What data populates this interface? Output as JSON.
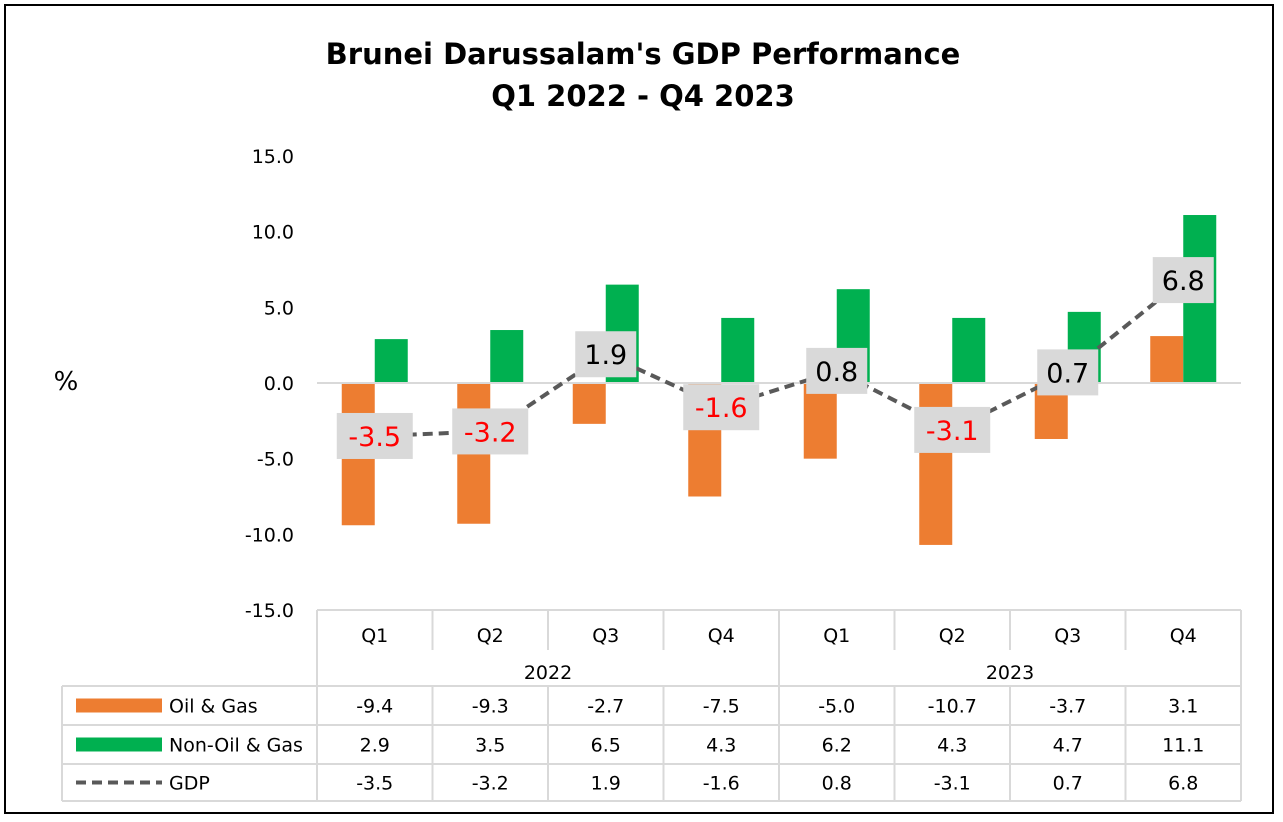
{
  "chart_data": {
    "type": "bar",
    "title": "Brunei Darussalam's GDP Performance",
    "subtitle": "Q1 2022 - Q4 2023",
    "ylabel": "%",
    "ylim": [
      -15,
      15
    ],
    "yticks": [
      "15.0",
      "10.0",
      "5.0",
      "0.0",
      "-5.0",
      "-10.0",
      "-15.0"
    ],
    "grid": false,
    "legend": "data-table",
    "categories": [
      "Q1",
      "Q2",
      "Q3",
      "Q4",
      "Q1",
      "Q2",
      "Q3",
      "Q4"
    ],
    "groups": [
      {
        "label": "2022",
        "span": 4
      },
      {
        "label": "2023",
        "span": 4
      }
    ],
    "series": [
      {
        "name": "Oil & Gas",
        "type": "bar",
        "color": "#ED7D31",
        "values": [
          -9.4,
          -9.3,
          -2.7,
          -7.5,
          -5.0,
          -10.7,
          -3.7,
          3.1
        ],
        "display": [
          "-9.4",
          "-9.3",
          "-2.7",
          "-7.5",
          "-5.0",
          "-10.7",
          "-3.7",
          "3.1"
        ]
      },
      {
        "name": "Non-Oil & Gas",
        "type": "bar",
        "color": "#00B050",
        "values": [
          2.9,
          3.5,
          6.5,
          4.3,
          6.2,
          4.3,
          4.7,
          11.1
        ],
        "display": [
          "2.9",
          "3.5",
          "6.5",
          "4.3",
          "6.2",
          "4.3",
          "4.7",
          "11.1"
        ]
      },
      {
        "name": "GDP",
        "type": "line",
        "color": "#595959",
        "dashed": true,
        "values": [
          -3.5,
          -3.2,
          1.9,
          -1.6,
          0.8,
          -3.1,
          0.7,
          6.8
        ],
        "display": [
          "-3.5",
          "-3.2",
          "1.9",
          "-1.6",
          "0.8",
          "-3.1",
          "0.7",
          "6.8"
        ]
      }
    ],
    "data_labels": {
      "series": "GDP",
      "negative_color": "#FF0000",
      "positive_color": "#000000",
      "background": "#D9D9D9"
    }
  }
}
